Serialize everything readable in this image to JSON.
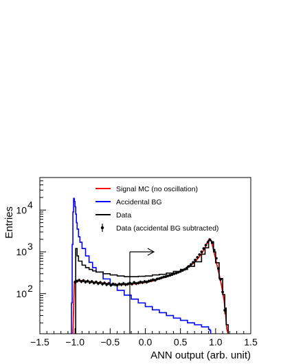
{
  "chart_data": {
    "type": "line",
    "xlabel": "ANN output (arb. unit)",
    "ylabel": "Entries",
    "xlim": [
      -1.5,
      1.5
    ],
    "ylim": [
      11,
      60000
    ],
    "yscale": "log",
    "grid": false,
    "legend_position": "top-center",
    "x_ticks": [
      {
        "value": -1.5,
        "label": "−1.5"
      },
      {
        "value": -1.0,
        "label": "−1.0"
      },
      {
        "value": -0.5,
        "label": "−0.5"
      },
      {
        "value": 0.0,
        "label": "0.0"
      },
      {
        "value": 0.5,
        "label": "0.5"
      },
      {
        "value": 1.0,
        "label": "1.0"
      },
      {
        "value": 1.5,
        "label": "1.5"
      }
    ],
    "y_ticks": [
      {
        "value": 100,
        "base": "10",
        "exp": "2"
      },
      {
        "value": 1000,
        "base": "10",
        "exp": "3"
      },
      {
        "value": 10000,
        "base": "10",
        "exp": "4"
      }
    ],
    "cut": {
      "x": -0.22,
      "direction": "right"
    },
    "series": [
      {
        "name": "Signal MC (no oscillation)",
        "style": "line",
        "color": "#ff0000",
        "x": [
          -1.05,
          -1.03,
          -1.01,
          -0.99,
          -0.95,
          -0.9,
          -0.85,
          -0.8,
          -0.75,
          -0.7,
          -0.6,
          -0.5,
          -0.4,
          -0.3,
          -0.2,
          -0.1,
          0.0,
          0.1,
          0.2,
          0.3,
          0.4,
          0.5,
          0.6,
          0.7,
          0.75,
          0.8,
          0.85,
          0.88,
          0.91,
          0.94,
          0.96,
          0.99,
          1.02,
          1.05,
          1.08,
          1.1,
          1.12,
          1.14,
          1.16,
          1.18
        ],
        "y": [
          11,
          11,
          175,
          185,
          200,
          205,
          200,
          195,
          190,
          185,
          180,
          170,
          165,
          165,
          170,
          175,
          185,
          200,
          225,
          255,
          290,
          340,
          420,
          560,
          700,
          900,
          1250,
          1650,
          2050,
          1800,
          1300,
          800,
          480,
          290,
          170,
          110,
          70,
          35,
          14,
          11
        ]
      },
      {
        "name": "Accidental BG",
        "style": "step",
        "color": "#0000ff",
        "x": [
          -1.07,
          -1.05,
          -1.04,
          -1.03,
          -1.02,
          -1.01,
          -1.0,
          -0.99,
          -0.98,
          -0.97,
          -0.95,
          -0.93,
          -0.9,
          -0.85,
          -0.8,
          -0.75,
          -0.7,
          -0.6,
          -0.5,
          -0.4,
          -0.3,
          -0.2,
          -0.1,
          0.0,
          0.1,
          0.2,
          0.3,
          0.4,
          0.5,
          0.6,
          0.7,
          0.8,
          0.9,
          0.92,
          0.93
        ],
        "y": [
          11,
          60,
          1500,
          9000,
          19000,
          16000,
          12000,
          8000,
          5000,
          3500,
          2300,
          1700,
          1200,
          800,
          560,
          420,
          330,
          225,
          160,
          120,
          92,
          74,
          60,
          49,
          41,
          35,
          30,
          26,
          23,
          20,
          18,
          16,
          14,
          13,
          11
        ]
      },
      {
        "name": "Data",
        "style": "step",
        "color": "#000000",
        "x": [
          -1.0,
          -0.99,
          -0.97,
          -0.95,
          -0.9,
          -0.85,
          -0.8,
          -0.75,
          -0.7,
          -0.6,
          -0.5,
          -0.4,
          -0.3,
          -0.2,
          -0.1,
          0.0,
          0.1,
          0.2,
          0.3,
          0.4,
          0.5,
          0.6,
          0.7,
          0.8,
          0.85,
          0.9,
          0.94,
          0.97,
          1.0,
          1.05,
          1.1,
          1.13,
          1.15,
          1.18
        ],
        "y": [
          11,
          1200,
          800,
          600,
          480,
          420,
          380,
          350,
          330,
          300,
          280,
          265,
          255,
          255,
          260,
          265,
          280,
          290,
          310,
          340,
          380,
          450,
          580,
          880,
          1250,
          1850,
          1750,
          1000,
          550,
          230,
          95,
          45,
          18,
          11
        ]
      },
      {
        "name": "Data (accidental BG subtracted)",
        "style": "points",
        "color": "#000000",
        "x": [
          -1.0,
          -0.97,
          -0.94,
          -0.91,
          -0.88,
          -0.85,
          -0.82,
          -0.79,
          -0.76,
          -0.73,
          -0.7,
          -0.67,
          -0.64,
          -0.61,
          -0.58,
          -0.55,
          -0.52,
          -0.49,
          -0.46,
          -0.43,
          -0.4,
          -0.37,
          -0.34,
          -0.31,
          -0.28,
          -0.25,
          -0.22,
          -0.19,
          -0.16,
          -0.13,
          -0.1,
          -0.07,
          -0.04,
          -0.01,
          0.02,
          0.05,
          0.08,
          0.11,
          0.14,
          0.17,
          0.2,
          0.23,
          0.26,
          0.29,
          0.32,
          0.35,
          0.38,
          0.41,
          0.44,
          0.47,
          0.5,
          0.53,
          0.56,
          0.59,
          0.62,
          0.65,
          0.68,
          0.71,
          0.74,
          0.77,
          0.8,
          0.83,
          0.86,
          0.89,
          0.92,
          0.95,
          0.98,
          1.01,
          1.04,
          1.07,
          1.1,
          1.13
        ],
        "y": [
          190,
          200,
          210,
          195,
          205,
          190,
          200,
          185,
          195,
          180,
          190,
          175,
          185,
          170,
          180,
          165,
          175,
          160,
          170,
          165,
          160,
          170,
          165,
          175,
          165,
          170,
          180,
          170,
          185,
          175,
          180,
          190,
          185,
          195,
          190,
          200,
          205,
          215,
          210,
          225,
          230,
          240,
          250,
          255,
          265,
          275,
          285,
          300,
          310,
          325,
          340,
          360,
          380,
          410,
          450,
          500,
          560,
          640,
          740,
          860,
          1000,
          1200,
          1450,
          1700,
          1950,
          1650,
          1100,
          700,
          400,
          220,
          110,
          40
        ]
      }
    ]
  }
}
